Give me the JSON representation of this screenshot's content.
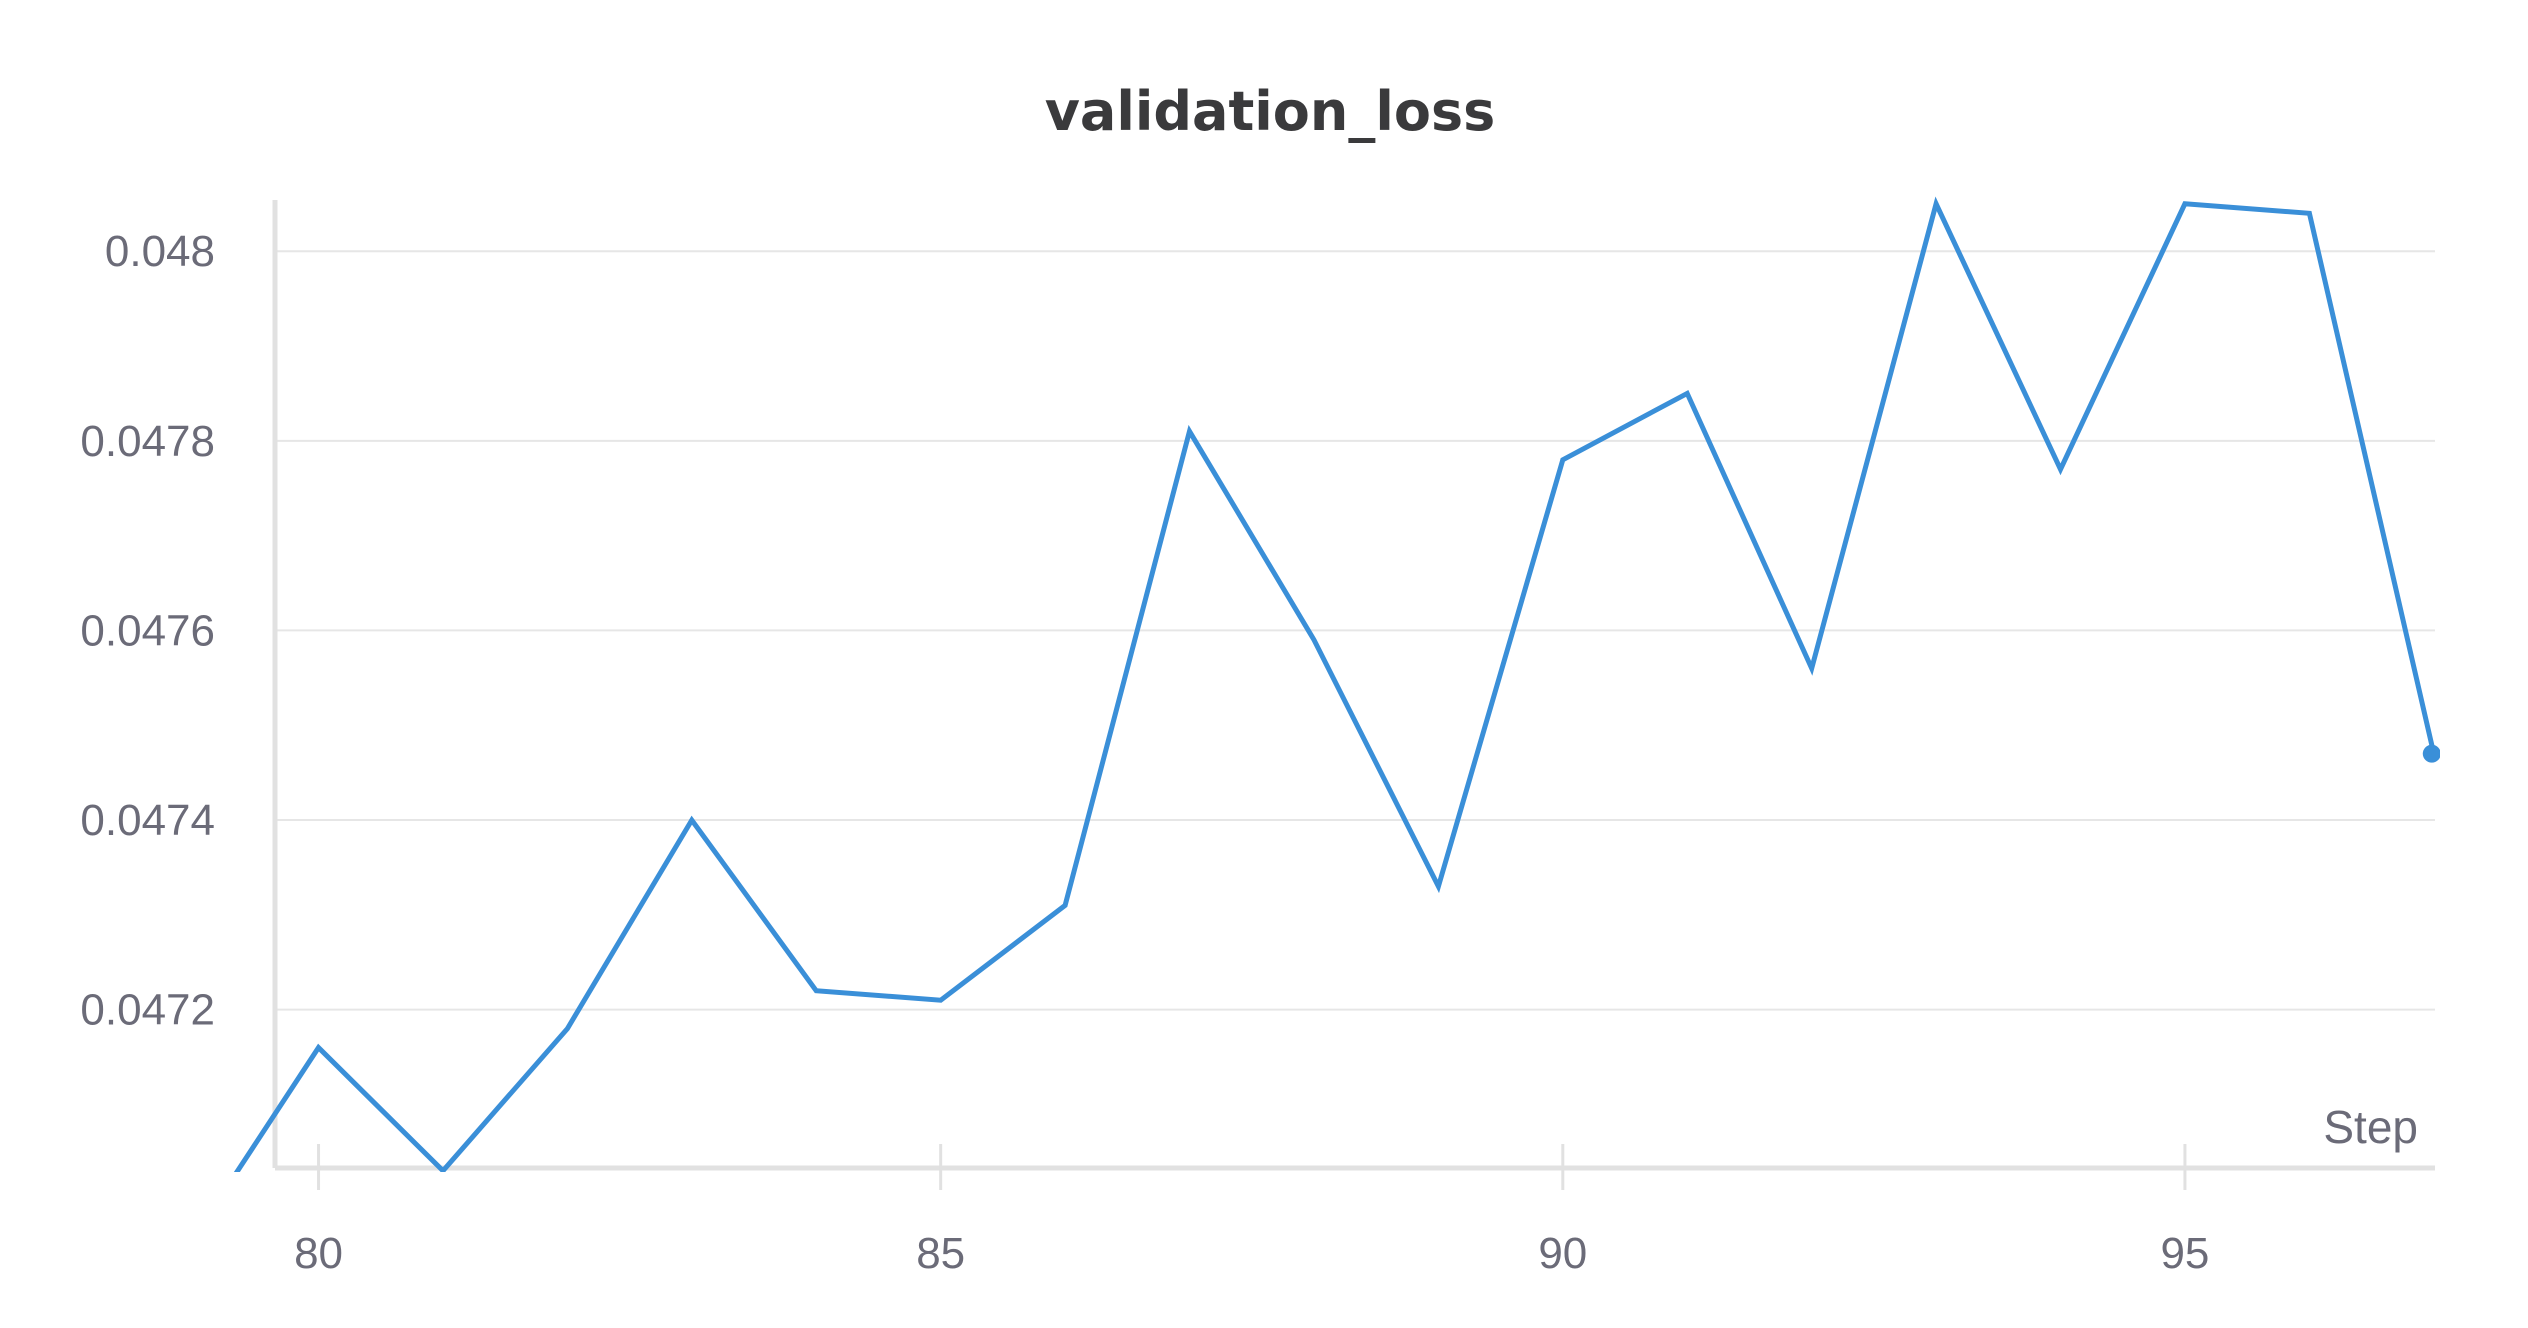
{
  "chart_data": {
    "type": "line",
    "title": "validation_loss",
    "xlabel": "Step",
    "ylabel": "",
    "xlim": [
      79.65,
      97.05
    ],
    "ylim": [
      0.047033,
      0.048054
    ],
    "x_ticks": [
      "80",
      "85",
      "90",
      "95"
    ],
    "y_ticks": [
      "0.048",
      "0.0478",
      "0.0476",
      "0.0474",
      "0.0472"
    ],
    "grid": true,
    "legend": "none",
    "colors": {
      "series": "#3a8fd8",
      "grid": "#e6e6e6",
      "axis": "#e1e1e1"
    },
    "series": [
      {
        "x": [
          79,
          80,
          81,
          82,
          83,
          84,
          85,
          86,
          87,
          88,
          89,
          90,
          91,
          92,
          93,
          94,
          95,
          96,
          97
        ],
        "y": [
          0.04696,
          0.04716,
          0.04703,
          0.04718,
          0.0474,
          0.04722,
          0.04721,
          0.04731,
          0.04781,
          0.04759,
          0.04733,
          0.04778,
          0.04785,
          0.04756,
          0.04805,
          0.04777,
          0.04805,
          0.04804,
          0.04747
        ]
      }
    ]
  }
}
